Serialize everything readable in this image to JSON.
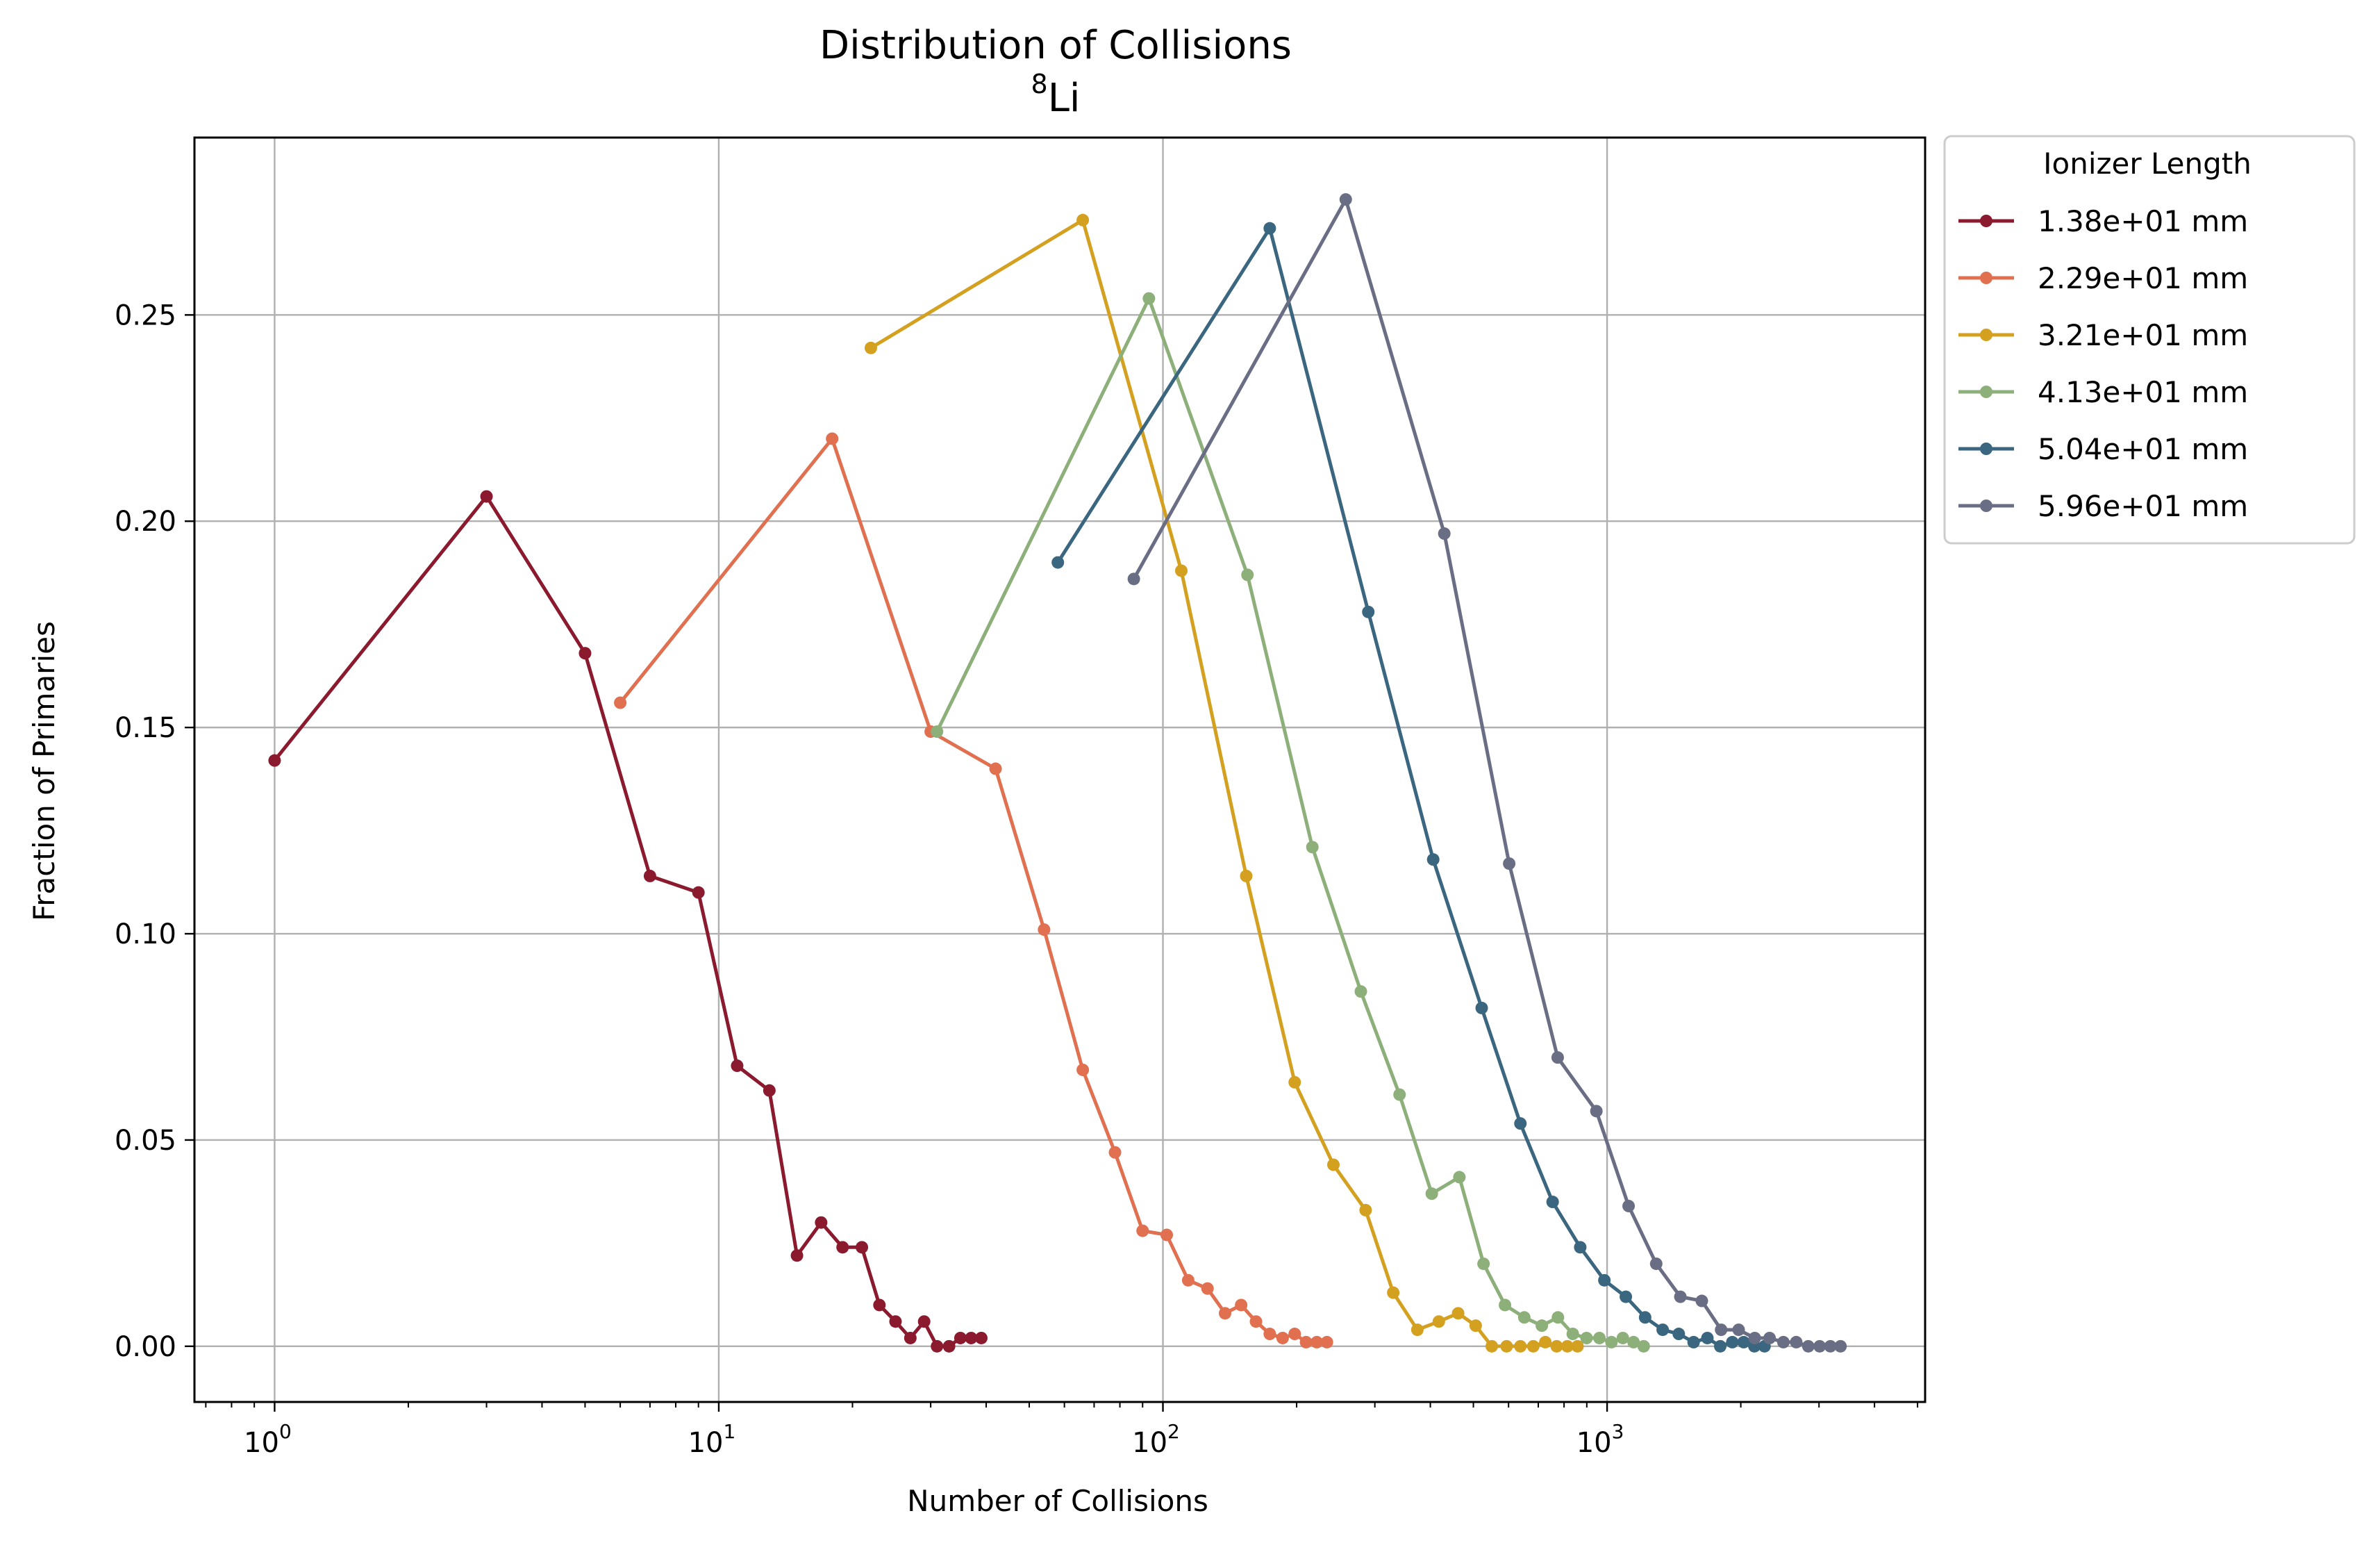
{
  "chart_data": {
    "type": "line",
    "title": "Distribution of Collisions",
    "subtitle_sup": "8",
    "subtitle": "Li",
    "xlabel": "Number of Collisions",
    "ylabel": "Fraction of Primaries",
    "xscale": "log",
    "xlim": [
      0.66,
      5200
    ],
    "ylim": [
      -0.0135,
      0.293
    ],
    "xticks": [
      {
        "value": 1,
        "base": "10",
        "exp": "0"
      },
      {
        "value": 10,
        "base": "10",
        "exp": "1"
      },
      {
        "value": 100,
        "base": "10",
        "exp": "2"
      },
      {
        "value": 1000,
        "base": "10",
        "exp": "3"
      }
    ],
    "yticks": [
      {
        "value": 0.0,
        "label": "0.00"
      },
      {
        "value": 0.05,
        "label": "0.05"
      },
      {
        "value": 0.1,
        "label": "0.10"
      },
      {
        "value": 0.15,
        "label": "0.15"
      },
      {
        "value": 0.2,
        "label": "0.20"
      },
      {
        "value": 0.25,
        "label": "0.25"
      }
    ],
    "grid": true,
    "legend": {
      "title": "Ionizer Length",
      "placement": "outside top-right"
    },
    "series": [
      {
        "name": "1.38e+01 mm",
        "color": "#8b1a2e",
        "x": [
          1,
          3,
          5,
          7,
          9,
          11,
          13,
          15,
          17,
          19,
          21,
          23,
          25,
          27,
          29,
          31,
          33,
          35,
          37,
          39
        ],
        "y": [
          0.142,
          0.206,
          0.168,
          0.114,
          0.11,
          0.068,
          0.062,
          0.022,
          0.03,
          0.024,
          0.024,
          0.01,
          0.006,
          0.002,
          0.006,
          0.0,
          0.0,
          0.002,
          0.002,
          0.002
        ]
      },
      {
        "name": "2.29e+01 mm",
        "color": "#e07050",
        "x": [
          6,
          18,
          30,
          42,
          54,
          66,
          78,
          90,
          102,
          114,
          126,
          138,
          150,
          162,
          174,
          186,
          198,
          210,
          222,
          234
        ],
        "y": [
          0.156,
          0.22,
          0.149,
          0.14,
          0.101,
          0.067,
          0.047,
          0.028,
          0.027,
          0.016,
          0.014,
          0.008,
          0.01,
          0.006,
          0.003,
          0.002,
          0.003,
          0.001,
          0.001,
          0.001
        ]
      },
      {
        "name": "3.21e+01 mm",
        "color": "#d4a020",
        "x": [
          22,
          66,
          110,
          154,
          198,
          242,
          286,
          330,
          374,
          418,
          462,
          506,
          550,
          594,
          638,
          682,
          726,
          770,
          814,
          858
        ],
        "y": [
          0.242,
          0.273,
          0.188,
          0.114,
          0.064,
          0.044,
          0.033,
          0.013,
          0.004,
          0.006,
          0.008,
          0.005,
          0.0,
          0.0,
          0.0,
          0.0,
          0.001,
          0.0,
          0.0,
          0.0
        ]
      },
      {
        "name": "4.13e+01 mm",
        "color": "#8db07a",
        "x": [
          31,
          93,
          155,
          217,
          279,
          341,
          403,
          465,
          527,
          589,
          651,
          713,
          775,
          837,
          899,
          961,
          1023,
          1085,
          1147,
          1209
        ],
        "y": [
          0.149,
          0.254,
          0.187,
          0.121,
          0.086,
          0.061,
          0.037,
          0.041,
          0.02,
          0.01,
          0.007,
          0.005,
          0.007,
          0.003,
          0.002,
          0.002,
          0.001,
          0.002,
          0.001,
          0.0
        ]
      },
      {
        "name": "5.04e+01 mm",
        "color": "#3a6680",
        "x": [
          58,
          174,
          290,
          406,
          522,
          638,
          754,
          870,
          986,
          1102,
          1218,
          1334,
          1450,
          1566,
          1682,
          1798,
          1914,
          2030,
          2146,
          2262
        ],
        "y": [
          0.19,
          0.271,
          0.178,
          0.118,
          0.082,
          0.054,
          0.035,
          0.024,
          0.016,
          0.012,
          0.007,
          0.004,
          0.003,
          0.001,
          0.002,
          0.0,
          0.001,
          0.001,
          0.0,
          0.0
        ]
      },
      {
        "name": "5.96e+01 mm",
        "color": "#6a6e85",
        "x": [
          86,
          258,
          430,
          602,
          774,
          946,
          1118,
          1290,
          1462,
          1634,
          1806,
          1978,
          2150,
          2322,
          2494,
          2666,
          2838,
          3010,
          3182,
          3354
        ],
        "y": [
          0.186,
          0.278,
          0.197,
          0.117,
          0.07,
          0.057,
          0.034,
          0.02,
          0.012,
          0.011,
          0.004,
          0.004,
          0.002,
          0.002,
          0.001,
          0.001,
          0.0,
          0.0,
          0.0,
          0.0
        ]
      }
    ]
  }
}
